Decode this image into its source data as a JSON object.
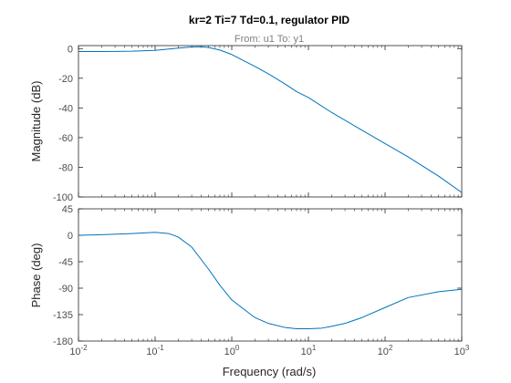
{
  "window": {
    "title": "kr=2 Ti=7 Td=0.1, regulator PID"
  },
  "chart_data": [
    {
      "type": "line",
      "title": "kr=2 Ti=7 Td=0.1, regulator PID",
      "subtitle": "From: u1  To: y1",
      "xlabel": "",
      "ylabel": "Magnitude (dB)",
      "xscale": "log",
      "xlim": [
        0.01,
        1000
      ],
      "ylim": [
        -100,
        2
      ],
      "yticks": [
        0,
        -20,
        -40,
        -60,
        -80,
        -100
      ],
      "ytick_labels": [
        "0",
        "-20",
        "-40",
        "-60",
        "-80",
        "-100"
      ],
      "grid": false,
      "color": "#0072bd",
      "series": [
        {
          "x": [
            0.01,
            0.02,
            0.05,
            0.1,
            0.2,
            0.3,
            0.4,
            0.5,
            0.7,
            1,
            2,
            3,
            5,
            7,
            10,
            20,
            50,
            100,
            200,
            500,
            1000
          ],
          "y": [
            -2,
            -2,
            -1.8,
            -1.2,
            0.3,
            1.1,
            1.2,
            0.7,
            -1,
            -4,
            -12,
            -17,
            -24,
            -29,
            -33,
            -43,
            -55,
            -64,
            -73,
            -86,
            -97
          ]
        }
      ]
    },
    {
      "type": "line",
      "title": "",
      "xlabel": "Frequency  (rad/s)",
      "ylabel": "Phase (deg)",
      "xscale": "log",
      "xlim": [
        0.01,
        1000
      ],
      "ylim": [
        -180,
        45
      ],
      "yticks": [
        45,
        0,
        -45,
        -90,
        -135,
        -180
      ],
      "ytick_labels": [
        "45",
        "0",
        "-45",
        "-90",
        "-135",
        "-180"
      ],
      "xtick_exponents": [
        -2,
        -1,
        0,
        1,
        2,
        3
      ],
      "xtick_base": "10",
      "grid": false,
      "color": "#0072bd",
      "series": [
        {
          "x": [
            0.01,
            0.02,
            0.05,
            0.1,
            0.15,
            0.2,
            0.3,
            0.5,
            0.7,
            1,
            2,
            3,
            5,
            7,
            10,
            15,
            20,
            30,
            50,
            100,
            200,
            500,
            1000
          ],
          "y": [
            0,
            1,
            3,
            5,
            3,
            -3,
            -20,
            -58,
            -85,
            -110,
            -140,
            -150,
            -157,
            -159,
            -159,
            -158,
            -155,
            -150,
            -140,
            -123,
            -106,
            -96,
            -92
          ]
        }
      ]
    }
  ]
}
